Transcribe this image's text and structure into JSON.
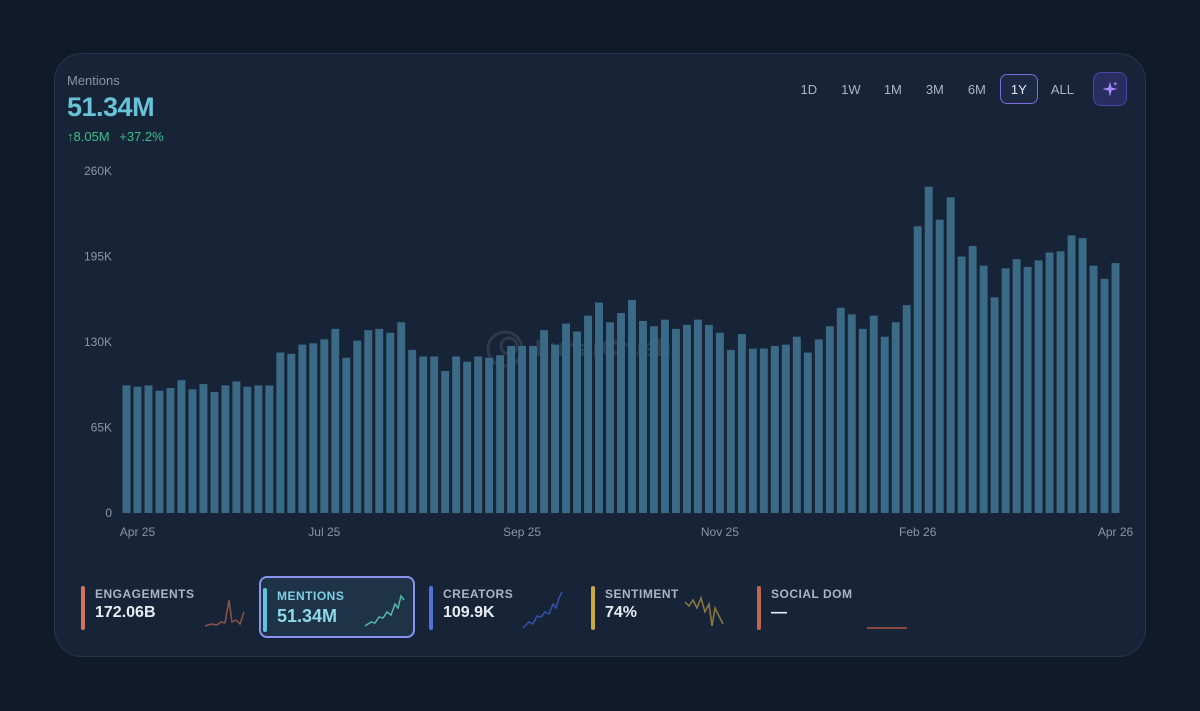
{
  "metric": {
    "label": "Mentions",
    "value": "51.34M",
    "change_abs": "↑8.05M",
    "change_pct": "+37.2%"
  },
  "ranges": [
    "1D",
    "1W",
    "1M",
    "3M",
    "6M",
    "1Y",
    "ALL"
  ],
  "active_range": "1Y",
  "watermark": "LunarCrush",
  "colors": {
    "bar": "#3a6a85",
    "accent": "#68c3d8",
    "positive": "#39c08a",
    "engagements": "#d2735b",
    "mentions": "#5fc6d8",
    "creators": "#3f63c4",
    "sentiment": "#b89a3d",
    "social_dom": "#c46551"
  },
  "tabs": [
    {
      "name": "ENGAGEMENTS",
      "value": "172.06B",
      "color": "#d2735b",
      "active": false
    },
    {
      "name": "MENTIONS",
      "value": "51.34M",
      "color": "#5fc6d8",
      "active": true
    },
    {
      "name": "CREATORS",
      "value": "109.9K",
      "color": "#4d73d6",
      "active": false
    },
    {
      "name": "SENTIMENT",
      "value": "74%",
      "color": "#c9a840",
      "active": false
    },
    {
      "name": "SOCIAL DOM",
      "value": "—",
      "color": "#c46551",
      "active": false
    }
  ],
  "chart_data": {
    "type": "bar",
    "title": "Mentions",
    "ylim": [
      0,
      260000
    ],
    "yticks": [
      0,
      65000,
      130000,
      195000,
      260000
    ],
    "ytick_labels": [
      "0",
      "65K",
      "130K",
      "195K",
      "260K"
    ],
    "xtick_labels": [
      {
        "label": "Apr 25",
        "index": 1
      },
      {
        "label": "Jul 25",
        "index": 18
      },
      {
        "label": "Sep 25",
        "index": 36
      },
      {
        "label": "Nov 25",
        "index": 54
      },
      {
        "label": "Feb 26",
        "index": 72
      },
      {
        "label": "Apr 26",
        "index": 90
      }
    ],
    "values": [
      97000,
      96000,
      97000,
      93000,
      95000,
      101000,
      94000,
      98000,
      92000,
      97000,
      100000,
      96000,
      97000,
      97000,
      122000,
      121000,
      128000,
      129000,
      132000,
      140000,
      118000,
      131000,
      139000,
      140000,
      137000,
      145000,
      124000,
      119000,
      119000,
      108000,
      119000,
      115000,
      119000,
      118000,
      120000,
      127000,
      127000,
      127000,
      139000,
      128000,
      144000,
      138000,
      150000,
      160000,
      145000,
      152000,
      162000,
      146000,
      142000,
      147000,
      140000,
      143000,
      147000,
      143000,
      137000,
      124000,
      136000,
      125000,
      125000,
      127000,
      128000,
      134000,
      122000,
      132000,
      142000,
      156000,
      151000,
      140000,
      150000,
      134000,
      145000,
      158000,
      218000,
      248000,
      223000,
      240000,
      195000,
      203000,
      188000,
      164000,
      186000,
      193000,
      187000,
      192000,
      198000,
      199000,
      211000,
      209000,
      188000,
      178000,
      190000
    ]
  }
}
